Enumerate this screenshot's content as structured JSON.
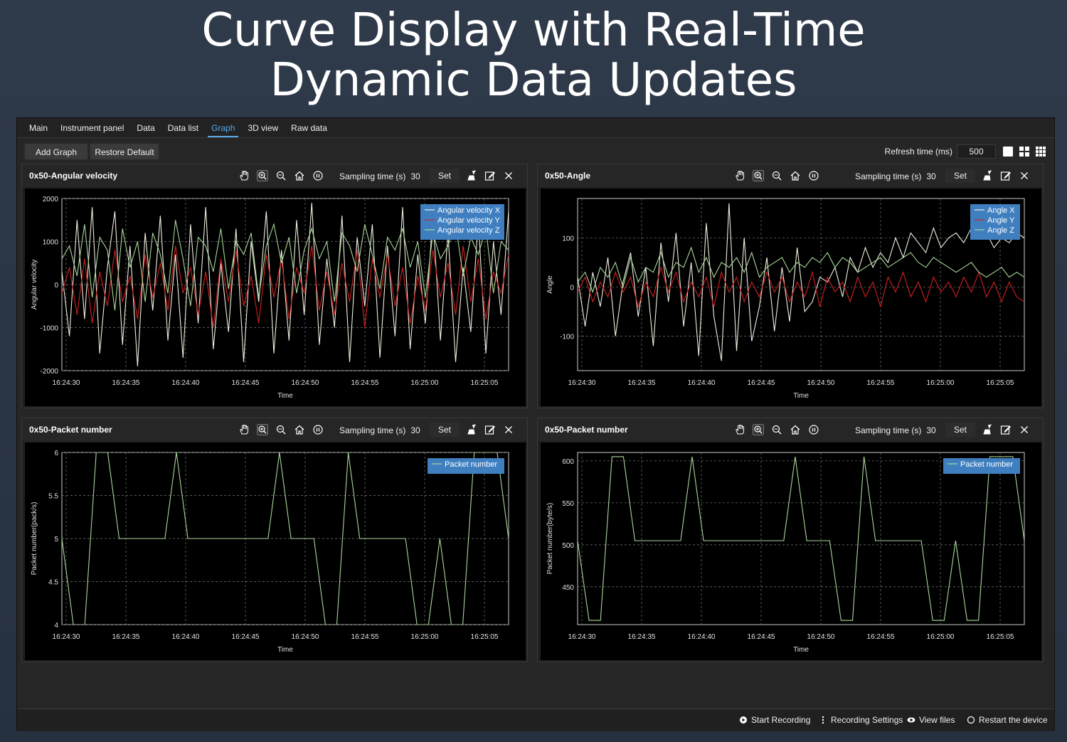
{
  "headline": {
    "line1": "Curve Display with Real-Time",
    "line2": "Dynamic Data Updates"
  },
  "tabs": [
    "Main",
    "Instrument panel",
    "Data",
    "Data list",
    "Graph",
    "3D view",
    "Raw data"
  ],
  "active_tab": "Graph",
  "toolbar": {
    "add_graph": "Add Graph",
    "restore_default": "Restore Default",
    "refresh_label": "Refresh time (ms)",
    "refresh_value": "500",
    "layout_icons": [
      "single-layout-icon",
      "quad-layout-icon",
      "nine-grid-layout-icon"
    ]
  },
  "panel_common": {
    "sampling_label": "Sampling time (s)",
    "sampling_value": "30",
    "set_label": "Set",
    "icons": [
      "hand-pan-icon",
      "zoom-in-icon",
      "zoom-out-icon",
      "home-icon",
      "pause-icon"
    ],
    "action_icons": [
      "broom-clear-icon",
      "edit-icon",
      "close-icon"
    ]
  },
  "panels": [
    {
      "title": "0x50-Angular velocity"
    },
    {
      "title": "0x50-Angle"
    },
    {
      "title": "0x50-Packet number"
    },
    {
      "title": "0x50-Packet number"
    }
  ],
  "status_bar": {
    "start_recording": "Start Recording",
    "recording_settings": "Recording Settings",
    "view_files": "View files",
    "restart_device": "Restart the device"
  },
  "colors": {
    "green": "#a8d89a",
    "red": "#d02020",
    "white": "#f0f0e0",
    "legend_bg": "#3f7fc0",
    "accent": "#5aa9e6"
  },
  "chart_data": [
    {
      "type": "line",
      "xlabel": "Time",
      "ylabel": "Angular velocity",
      "x_ticks": [
        "16:24:30",
        "16:24:35",
        "16:24:40",
        "16:24:45",
        "16:24:50",
        "16:24:55",
        "16:25:00",
        "16:25:05"
      ],
      "y_ticks": [
        "2000",
        "1000",
        "0",
        "-1000",
        "-2000"
      ],
      "ylim": [
        -2000,
        2000
      ],
      "legend": "top-right",
      "series": [
        {
          "name": "Angular velocity X",
          "color": "#f0f0e0",
          "values": [
            300,
            -1200,
            1500,
            -800,
            1800,
            -1600,
            400,
            1700,
            -1400,
            900,
            -1900,
            1200,
            -600,
            1600,
            -1300,
            700,
            -1700,
            1400,
            -900,
            1800,
            -1500,
            500,
            -1100,
            1300,
            -1800,
            1000,
            -400,
            1700,
            -1600,
            800,
            -1300,
            1500,
            -700,
            1900,
            -1400,
            600,
            -1000,
            1600,
            -1800,
            1100,
            -500,
            1400,
            -1700,
            900,
            -1200,
            1800,
            -1500,
            700,
            -900,
            1600,
            -1300,
            1200,
            -1800,
            400,
            -1100,
            1500,
            -1600,
            1000,
            -700,
            1700
          ]
        },
        {
          "name": "Angular velocity Y",
          "color": "#d02020",
          "values": [
            -200,
            400,
            -700,
            600,
            -900,
            300,
            -500,
            800,
            -400,
            200,
            -800,
            700,
            -300,
            500,
            -600,
            900,
            -200,
            400,
            -700,
            300,
            -1000,
            600,
            -400,
            800,
            -500,
            200,
            -900,
            700,
            -300,
            600,
            -800,
            400,
            -200,
            900,
            -600,
            300,
            -700,
            500,
            -400,
            800,
            -1000,
            600,
            -300,
            700,
            -500,
            400,
            -900,
            200,
            -600,
            800,
            -300,
            500,
            -700,
            900,
            -400,
            600,
            -800,
            300,
            -200,
            700
          ]
        },
        {
          "name": "Angular velocity Z",
          "color": "#a8d89a",
          "values": [
            600,
            900,
            200,
            1400,
            -300,
            1100,
            800,
            -600,
            1300,
            400,
            1000,
            -400,
            1200,
            700,
            -200,
            1500,
            600,
            -500,
            1100,
            900,
            300,
            1300,
            -100,
            1000,
            700,
            1200,
            -300,
            900,
            1400,
            500,
            1100,
            -200,
            800,
            1300,
            600,
            1000,
            -400,
            1200,
            900,
            300,
            1400,
            700,
            -100,
            1100,
            800,
            1300,
            400,
            1000,
            -300,
            1200,
            600,
            900,
            1400,
            200,
            1100,
            700,
            1300,
            -200,
            1000,
            800
          ]
        }
      ]
    },
    {
      "type": "line",
      "xlabel": "Time",
      "ylabel": "Angle",
      "x_ticks": [
        "16:24:30",
        "16:24:35",
        "16:24:40",
        "16:24:45",
        "16:24:50",
        "16:24:55",
        "16:25:00",
        "16:25:05"
      ],
      "y_ticks": [
        "100",
        "0",
        "-100"
      ],
      "ylim": [
        -170,
        180
      ],
      "legend": "top-right",
      "series": [
        {
          "name": "Angle X",
          "color": "#f0f0e0",
          "values": [
            20,
            -80,
            30,
            -40,
            60,
            -100,
            10,
            70,
            -60,
            40,
            -120,
            90,
            -30,
            110,
            -80,
            50,
            -140,
            130,
            -60,
            -150,
            170,
            -130,
            100,
            -110,
            -40,
            60,
            -90,
            40,
            -70,
            80,
            -50,
            -30,
            20,
            10,
            40,
            -20,
            60,
            30,
            80,
            40,
            70,
            50,
            100,
            60,
            110,
            90,
            70,
            120,
            80,
            100,
            110,
            90,
            120,
            100,
            110,
            80,
            100,
            90,
            110,
            100
          ]
        },
        {
          "name": "Angle Y",
          "color": "#d02020",
          "values": [
            -10,
            20,
            -30,
            10,
            -20,
            30,
            -10,
            20,
            -40,
            10,
            -20,
            40,
            -10,
            30,
            -30,
            10,
            -20,
            20,
            -40,
            30,
            -10,
            20,
            -30,
            10,
            -20,
            30,
            -10,
            20,
            -30,
            10,
            -20,
            30,
            -40,
            20,
            -10,
            10,
            -30,
            20,
            -20,
            10,
            -40,
            20,
            -10,
            30,
            -20,
            10,
            -30,
            20,
            -10,
            10,
            -20,
            20,
            -10,
            30,
            -20,
            10,
            -30,
            10,
            -20,
            -30
          ]
        },
        {
          "name": "Angle Z",
          "color": "#a8d89a",
          "values": [
            10,
            30,
            -10,
            40,
            20,
            50,
            0,
            60,
            10,
            40,
            30,
            70,
            20,
            50,
            40,
            80,
            30,
            60,
            20,
            50,
            40,
            60,
            30,
            70,
            20,
            40,
            50,
            60,
            30,
            50,
            40,
            60,
            50,
            70,
            40,
            60,
            50,
            30,
            40,
            50,
            60,
            40,
            50,
            60,
            70,
            50,
            40,
            60,
            50,
            40,
            30,
            40,
            50,
            30,
            20,
            30,
            40,
            20,
            30,
            20
          ]
        }
      ]
    },
    {
      "type": "line",
      "xlabel": "Time",
      "ylabel": "Packet number(pack/s)",
      "x_ticks": [
        "16:24:30",
        "16:24:35",
        "16:24:40",
        "16:24:45",
        "16:24:50",
        "16:24:55",
        "16:25:00",
        "16:25:05"
      ],
      "y_ticks": [
        "6",
        "5.5",
        "5",
        "4.5",
        "4"
      ],
      "ylim": [
        4,
        6
      ],
      "legend": "top-right",
      "series": [
        {
          "name": "Packet number",
          "color": "#a8d89a",
          "values": [
            5,
            4,
            4,
            6,
            6,
            5,
            5,
            5,
            5,
            5,
            6,
            5,
            5,
            5,
            5,
            5,
            5,
            5,
            5,
            6,
            5,
            5,
            5,
            4,
            4,
            6,
            5,
            5,
            5,
            5,
            5,
            4,
            4,
            5,
            4,
            4,
            6,
            6,
            6,
            5
          ]
        }
      ]
    },
    {
      "type": "line",
      "xlabel": "Time",
      "ylabel": "Packet number(byte/s)",
      "x_ticks": [
        "16:24:30",
        "16:24:35",
        "16:24:40",
        "16:24:45",
        "16:24:50",
        "16:24:55",
        "16:25:00",
        "16:25:05"
      ],
      "y_ticks": [
        "600",
        "550",
        "500",
        "450"
      ],
      "ylim": [
        405,
        610
      ],
      "legend": "top-right",
      "series": [
        {
          "name": "Packet number",
          "color": "#a8d89a",
          "values": [
            505,
            410,
            410,
            605,
            605,
            505,
            505,
            505,
            505,
            505,
            605,
            505,
            505,
            505,
            505,
            505,
            505,
            505,
            505,
            605,
            505,
            505,
            505,
            410,
            410,
            605,
            505,
            505,
            505,
            505,
            505,
            410,
            410,
            505,
            410,
            410,
            605,
            605,
            605,
            505
          ]
        }
      ]
    }
  ]
}
